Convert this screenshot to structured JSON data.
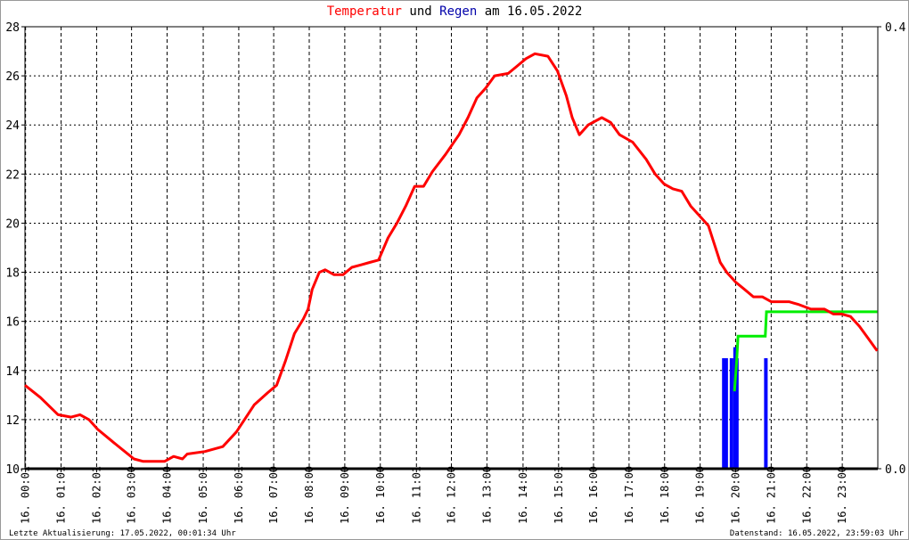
{
  "chart_data": {
    "type": "line",
    "title_parts": [
      {
        "text": "Temperatur",
        "color": "#ff0000"
      },
      {
        "text": " und ",
        "color": "#000000"
      },
      {
        "text": "Regen",
        "color": "#0000aa"
      },
      {
        "text": " am 16.05.2022",
        "color": "#000000"
      }
    ],
    "y_left": {
      "range": [
        10,
        28
      ],
      "ticks": [
        "10",
        "12",
        "14",
        "16",
        "18",
        "20",
        "22",
        "24",
        "26",
        "28"
      ]
    },
    "y_right": {
      "range": [
        0.0,
        0.4
      ],
      "ticks": [
        "0.0",
        "0.4"
      ]
    },
    "x_ticks": [
      "16. 00:01",
      "16. 01:01",
      "16. 02:01",
      "16. 03:00",
      "16. 04:00",
      "16. 05:01",
      "16. 06:01",
      "16. 07:00",
      "16. 08:00",
      "16. 09:00",
      "16. 10:00",
      "16. 11:01",
      "16. 12:00",
      "16. 13:00",
      "16. 14:01",
      "16. 15:01",
      "16. 16:00",
      "16. 17:00",
      "16. 18:00",
      "16. 19:00",
      "16. 20:00",
      "16. 21:00",
      "16. 22:00",
      "16. 23:00"
    ],
    "x_range": [
      "00:00",
      "24:00"
    ],
    "grid": true,
    "colors": {
      "temperature": "#ff0000",
      "rain": "#0000ff",
      "rain_sum": "#00ee00",
      "baseline": "#000000"
    },
    "temperature": [
      [
        "00:00",
        13.4
      ],
      [
        "00:26",
        12.9
      ],
      [
        "00:56",
        12.2
      ],
      [
        "01:18",
        12.1
      ],
      [
        "01:33",
        12.2
      ],
      [
        "01:48",
        12.0
      ],
      [
        "02:03",
        11.6
      ],
      [
        "02:33",
        11.0
      ],
      [
        "03:04",
        10.4
      ],
      [
        "03:19",
        10.3
      ],
      [
        "03:56",
        10.3
      ],
      [
        "04:11",
        10.5
      ],
      [
        "04:26",
        10.4
      ],
      [
        "04:34",
        10.6
      ],
      [
        "05:04",
        10.7
      ],
      [
        "05:34",
        10.9
      ],
      [
        "05:57",
        11.5
      ],
      [
        "06:27",
        12.6
      ],
      [
        "06:50",
        13.1
      ],
      [
        "07:05",
        13.4
      ],
      [
        "07:20",
        14.4
      ],
      [
        "07:35",
        15.5
      ],
      [
        "07:50",
        16.1
      ],
      [
        "07:58",
        16.5
      ],
      [
        "08:05",
        17.3
      ],
      [
        "08:17",
        18.0
      ],
      [
        "08:27",
        18.1
      ],
      [
        "08:42",
        17.9
      ],
      [
        "08:57",
        17.9
      ],
      [
        "09:12",
        18.2
      ],
      [
        "09:27",
        18.3
      ],
      [
        "09:42",
        18.4
      ],
      [
        "09:57",
        18.5
      ],
      [
        "10:13",
        19.4
      ],
      [
        "10:28",
        20.0
      ],
      [
        "10:43",
        20.7
      ],
      [
        "10:58",
        21.5
      ],
      [
        "11:13",
        21.5
      ],
      [
        "11:28",
        22.1
      ],
      [
        "11:50",
        22.8
      ],
      [
        "12:13",
        23.6
      ],
      [
        "12:28",
        24.3
      ],
      [
        "12:43",
        25.1
      ],
      [
        "12:58",
        25.5
      ],
      [
        "13:13",
        26.0
      ],
      [
        "13:36",
        26.1
      ],
      [
        "13:51",
        26.4
      ],
      [
        "14:06",
        26.7
      ],
      [
        "14:21",
        26.9
      ],
      [
        "14:43",
        26.8
      ],
      [
        "14:59",
        26.2
      ],
      [
        "15:14",
        25.2
      ],
      [
        "15:24",
        24.3
      ],
      [
        "15:36",
        23.6
      ],
      [
        "15:51",
        24.0
      ],
      [
        "16:14",
        24.3
      ],
      [
        "16:29",
        24.1
      ],
      [
        "16:44",
        23.6
      ],
      [
        "17:06",
        23.3
      ],
      [
        "17:29",
        22.6
      ],
      [
        "17:44",
        22.0
      ],
      [
        "17:59",
        21.6
      ],
      [
        "18:14",
        21.4
      ],
      [
        "18:29",
        21.3
      ],
      [
        "18:44",
        20.7
      ],
      [
        "18:59",
        20.3
      ],
      [
        "19:14",
        19.9
      ],
      [
        "19:22",
        19.3
      ],
      [
        "19:34",
        18.4
      ],
      [
        "19:45",
        18.0
      ],
      [
        "20:00",
        17.6
      ],
      [
        "20:15",
        17.3
      ],
      [
        "20:30",
        17.0
      ],
      [
        "20:45",
        17.0
      ],
      [
        "21:00",
        16.8
      ],
      [
        "21:30",
        16.8
      ],
      [
        "21:45",
        16.7
      ],
      [
        "22:07",
        16.5
      ],
      [
        "22:30",
        16.5
      ],
      [
        "22:45",
        16.3
      ],
      [
        "22:59",
        16.3
      ],
      [
        "23:14",
        16.2
      ],
      [
        "23:29",
        15.8
      ],
      [
        "23:44",
        15.3
      ],
      [
        "23:59",
        14.8
      ]
    ],
    "rain": [
      [
        "19:40",
        0.1
      ],
      [
        "19:44",
        0.1
      ],
      [
        "19:53",
        0.1
      ],
      [
        "19:59",
        0.11
      ],
      [
        "20:02",
        0.1
      ],
      [
        "20:51",
        0.1
      ]
    ],
    "rain_sum": [
      [
        "19:58",
        0.07
      ],
      [
        "20:02",
        0.1
      ],
      [
        "20:04",
        0.12
      ],
      [
        "20:50",
        0.12
      ],
      [
        "20:52",
        0.142
      ],
      [
        "23:59",
        0.142
      ]
    ]
  },
  "footer": {
    "left": "Letzte Aktualisierung: 17.05.2022, 00:01:34 Uhr",
    "right": "Datenstand: 16.05.2022, 23:59:03 Uhr"
  }
}
